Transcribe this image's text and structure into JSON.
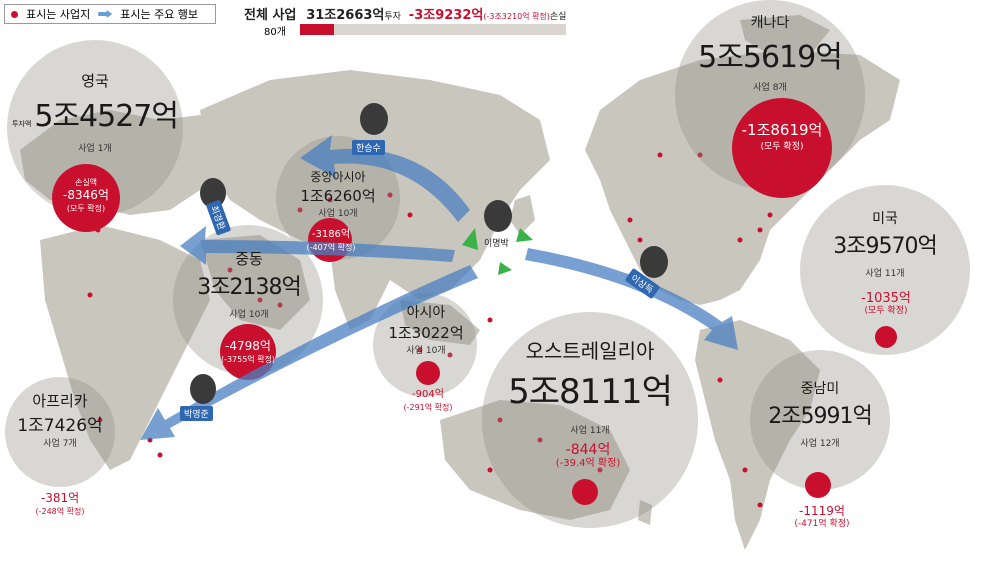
{
  "legend": {
    "dot_label": "표시는 사업지",
    "arrow_label": "표시는 주요 행보"
  },
  "header": {
    "total_label": "전체 사업",
    "total_investment": "31조2663억",
    "investment_suffix": "투자",
    "total_loss": "-3조9232억",
    "loss_note": "(-3조3210억 확정)",
    "loss_suffix": "손실",
    "count_label": "80개"
  },
  "regions": {
    "uk": {
      "name": "영국",
      "invest_label": "투자액",
      "amount": "5조4527억",
      "count": "사업 1개",
      "loss_label": "손실액",
      "loss": "-8346억",
      "loss_note": "(모두 확정)"
    },
    "central_asia": {
      "name": "중앙아시아",
      "amount": "1조6260억",
      "count": "사업 10개",
      "loss": "-3186억",
      "loss_note": "(-407억 확정)"
    },
    "middle_east": {
      "name": "중동",
      "amount": "3조2138억",
      "count": "사업 10개",
      "loss": "-4798억",
      "loss_note": "(-3755억 확정)"
    },
    "africa": {
      "name": "아프리카",
      "amount": "1조7426억",
      "count": "사업 7개",
      "loss": "-381억",
      "loss_note": "(-248억 확정)"
    },
    "asia": {
      "name": "아시아",
      "amount": "1조3022억",
      "count": "사업 10개",
      "loss": "-904억",
      "loss_note": "(-291억 확정)"
    },
    "australia": {
      "name": "오스트레일리아",
      "amount": "5조8111억",
      "count": "사업 11개",
      "loss": "-844억",
      "loss_note": "(-39.4억 확정)"
    },
    "canada": {
      "name": "캐나다",
      "amount": "5조5619억",
      "count": "사업 8개",
      "loss": "-1조8619억",
      "loss_note": "(모두 확정)"
    },
    "usa": {
      "name": "미국",
      "amount": "3조9570억",
      "count": "사업 11개",
      "loss": "-1035억",
      "loss_note": "(모두 확정)"
    },
    "latin_america": {
      "name": "중남미",
      "amount": "2조5991억",
      "count": "사업 12개",
      "loss": "-1119억",
      "loss_note": "(-471억 확정)"
    }
  },
  "people": {
    "han": "한승수",
    "choi": "최경환",
    "lee_mb": "이명박",
    "lee_sd": "이상득",
    "park": "박영준"
  },
  "colors": {
    "accent_red": "#c8102e",
    "land": "#c9c6bd",
    "circle": "#b9b6ad",
    "arrow_blue": "#4a7fc1"
  }
}
